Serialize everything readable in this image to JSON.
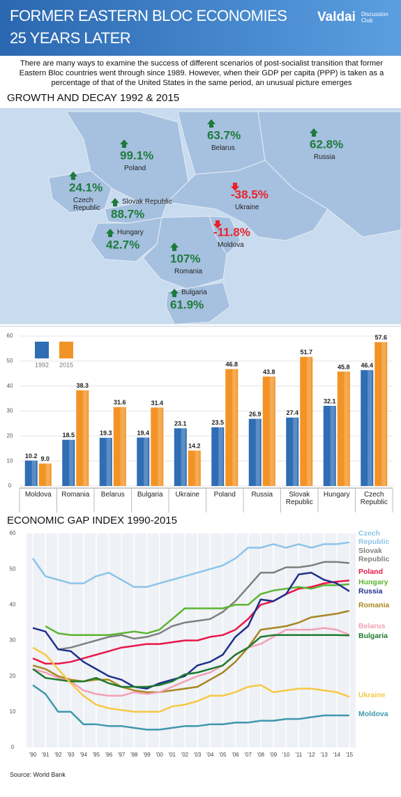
{
  "header": {
    "title_line1": "FORMER EASTERN BLOC ECONOMIES",
    "title_line2": "25 YEARS LATER",
    "logo": "Valdai",
    "logo_sub": "Discussion Club"
  },
  "intro": "There are many ways to examine the success of different scenarios of post-socialist transition that former Eastern Bloc countries went through since 1989. However, when their GDP per capita (PPP) is taken as a percentage of that of the United States in the same period, an unusual picture emerges",
  "map": {
    "title": "GROWTH AND DECAY 1992 & 2015",
    "up_color": "#1e7a3c",
    "down_color": "#e8232a",
    "countries": [
      {
        "name": "Belarus",
        "change": "63.7%"
      },
      {
        "name": "Poland",
        "change": "99.1%"
      },
      {
        "name": "Russia",
        "change": "62.8%"
      },
      {
        "name": "Czech Republic",
        "change": "24.1%"
      },
      {
        "name": "Ukraine",
        "change": "-38.5%"
      },
      {
        "name": "Slovak Republic",
        "change": "88.7%"
      },
      {
        "name": "Moldova",
        "change": "-11.8%"
      },
      {
        "name": "Hungary",
        "change": "42.7%"
      },
      {
        "name": "Romania",
        "change": "107%"
      },
      {
        "name": "Bulgaria",
        "change": "61.9%"
      }
    ]
  },
  "chart_data": [
    {
      "type": "bar",
      "categories": [
        "Moldova",
        "Romania",
        "Belarus",
        "Bulgaria",
        "Ukraine",
        "Poland",
        "Russia",
        "Slovak Republic",
        "Hungary",
        "Czech Republic"
      ],
      "series": [
        {
          "name": "1992",
          "color": "#2f6db5",
          "values": [
            10.2,
            18.5,
            19.3,
            19.4,
            23.1,
            23.5,
            26.9,
            27.4,
            32.1,
            46.4
          ]
        },
        {
          "name": "2015",
          "color": "#f39325",
          "values": [
            9.0,
            38.3,
            31.6,
            31.4,
            14.2,
            46.8,
            43.8,
            51.7,
            45.8,
            57.6
          ],
          "value_labels": [
            "9.0",
            "38.3",
            "31.6",
            "31.4",
            "14.2",
            "46.8",
            "43.8",
            "51.7",
            "45.8",
            "57.6"
          ]
        }
      ],
      "ylim": [
        0,
        60
      ],
      "yticks": [
        0,
        10,
        20,
        30,
        40,
        50,
        60
      ],
      "grid": true
    },
    {
      "type": "line",
      "title": "ECONOMIC GAP INDEX 1990-2015",
      "x": [
        1990,
        1991,
        1992,
        1993,
        1994,
        1995,
        1996,
        1997,
        1998,
        1999,
        2000,
        2001,
        2002,
        2003,
        2004,
        2005,
        2006,
        2007,
        2008,
        2009,
        2010,
        2011,
        2012,
        2013,
        2014,
        2015
      ],
      "xlim": [
        1989.5,
        2015.5
      ],
      "xticks": [
        {
          "value": 1990,
          "label": "'90"
        },
        {
          "value": 1991,
          "label": "'91"
        },
        {
          "value": 1992,
          "label": "'92"
        },
        {
          "value": 1993,
          "label": "'93"
        },
        {
          "value": 1994,
          "label": "'94"
        },
        {
          "value": 1995,
          "label": "'95"
        },
        {
          "value": 1996,
          "label": "'96"
        },
        {
          "value": 1997,
          "label": "'97"
        },
        {
          "value": 1998,
          "label": "'98"
        },
        {
          "value": 1999,
          "label": "'99"
        },
        {
          "value": 2000,
          "label": "'00"
        },
        {
          "value": 2001,
          "label": "'01"
        },
        {
          "value": 2002,
          "label": "'02"
        },
        {
          "value": 2003,
          "label": "'03"
        },
        {
          "value": 2004,
          "label": "'04"
        },
        {
          "value": 2005,
          "label": "'05"
        },
        {
          "value": 2006,
          "label": "'06"
        },
        {
          "value": 2007,
          "label": "'07"
        },
        {
          "value": 2008,
          "label": "'08"
        },
        {
          "value": 2009,
          "label": "'09"
        },
        {
          "value": 2010,
          "label": "'10"
        },
        {
          "value": 2011,
          "label": "'11"
        },
        {
          "value": 2012,
          "label": "'12"
        },
        {
          "value": 2013,
          "label": "'13"
        },
        {
          "value": 2014,
          "label": "'14"
        },
        {
          "value": 2015,
          "label": "'15"
        }
      ],
      "ylim": [
        0,
        60
      ],
      "yticks": [
        0,
        10,
        20,
        30,
        40,
        50,
        60
      ],
      "grid": true,
      "series": [
        {
          "name": "Czech Republic",
          "color": "#8cc4e8",
          "values": [
            53,
            48,
            47,
            46,
            46,
            48,
            49,
            47,
            45,
            45,
            46,
            47,
            48,
            49,
            50,
            51,
            53,
            56,
            56,
            57,
            56,
            57,
            56,
            57,
            57,
            57.5
          ]
        },
        {
          "name": "Slovak Republic",
          "color": "#7f7f7f",
          "values": [
            null,
            null,
            27.5,
            28,
            29,
            30,
            31,
            31.5,
            30.5,
            31,
            32,
            34,
            35,
            35.5,
            36,
            38,
            41,
            45,
            49,
            49,
            50.5,
            50.5,
            51,
            52,
            52,
            51.7
          ]
        },
        {
          "name": "Poland",
          "color": "#e8174a",
          "values": [
            25,
            23.5,
            23.5,
            24,
            25,
            26,
            27,
            28,
            28.5,
            29,
            29,
            29.5,
            30,
            30,
            31,
            31.5,
            33,
            36,
            40,
            41,
            43,
            44.5,
            45,
            46,
            46.5,
            46.8
          ]
        },
        {
          "name": "Hungary",
          "color": "#5cb531",
          "values": [
            null,
            34,
            32,
            31.5,
            31.5,
            31.5,
            31.5,
            32,
            32.5,
            32,
            33,
            36,
            39,
            39,
            39,
            39,
            40,
            40,
            43,
            44,
            44.5,
            45,
            44.5,
            45.5,
            45.5,
            45.8
          ]
        },
        {
          "name": "Russia",
          "color": "#1f2f8c",
          "values": [
            33.5,
            32.5,
            27.5,
            27,
            24,
            22,
            20,
            19,
            17,
            16.5,
            18,
            19,
            20,
            23,
            24,
            26,
            31,
            34,
            41.5,
            41,
            43,
            48.5,
            49,
            47,
            46,
            43.8
          ]
        },
        {
          "name": "Romania",
          "color": "#a88622",
          "values": [
            23,
            22,
            20,
            19,
            18.5,
            19,
            19,
            17,
            16,
            15.5,
            15.5,
            16,
            16.5,
            17,
            19,
            21,
            24,
            28,
            33,
            33.5,
            34,
            35,
            36.5,
            37,
            37.5,
            38.3
          ]
        },
        {
          "name": "Belarus",
          "color": "#f2a1b5",
          "values": [
            22,
            21,
            19.5,
            18.5,
            16,
            15,
            14.5,
            14.5,
            15.5,
            15,
            15.5,
            17,
            18.5,
            20,
            21,
            23,
            26,
            28,
            29,
            31,
            33,
            33,
            33,
            33.5,
            33,
            31.6
          ]
        },
        {
          "name": "Bulgaria",
          "color": "#1e7a2e",
          "values": [
            22,
            19.5,
            19,
            18.5,
            18.5,
            19.5,
            18,
            17,
            17,
            17,
            17.5,
            18.5,
            20.5,
            21,
            22,
            23,
            26,
            28,
            31,
            31.5,
            31.5,
            31.5,
            31.5,
            31.5,
            31.5,
            31.4
          ]
        },
        {
          "name": "Ukraine",
          "color": "#f7c844",
          "values": [
            28,
            26,
            22,
            18,
            14.5,
            12,
            11,
            10.5,
            10,
            10,
            10,
            11.5,
            12,
            13,
            14.5,
            14.5,
            15.5,
            17,
            17.5,
            15.5,
            16,
            16.5,
            16.5,
            16,
            15.5,
            14.2
          ]
        },
        {
          "name": "Moldova",
          "color": "#3f97ae",
          "values": [
            17.5,
            15,
            10,
            10,
            6.5,
            6.5,
            6,
            6,
            5.5,
            5,
            5,
            5.5,
            6,
            6,
            6.5,
            6.5,
            7,
            7,
            7.5,
            7.5,
            8,
            8,
            8.5,
            9,
            9,
            9.0
          ]
        }
      ]
    }
  ],
  "footer": {
    "source": "Source: World Bank"
  }
}
